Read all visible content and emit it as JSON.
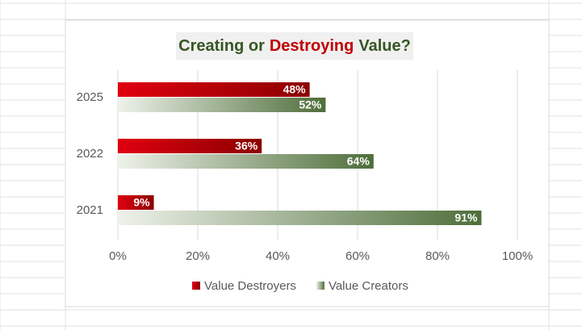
{
  "chart_data": {
    "type": "hbar",
    "title_parts": [
      "Creating or",
      "Destroying",
      "Value?"
    ],
    "title_colors": [
      "#375623",
      "#c00000",
      "#375623"
    ],
    "categories": [
      "2025",
      "2022",
      "2021"
    ],
    "series": [
      {
        "name": "Value Destroyers",
        "color": "#8b0000",
        "gradient_from": "#e00010",
        "values": [
          48,
          36,
          9
        ],
        "value_labels": [
          "48%",
          "36%",
          "9%"
        ]
      },
      {
        "name": "Value Creators",
        "color": "#4e6e3a",
        "gradient_from": "#eef2ea",
        "values": [
          52,
          64,
          91
        ],
        "value_labels": [
          "52%",
          "64%",
          "91%"
        ]
      }
    ],
    "xlim": [
      0,
      100
    ],
    "xticks": [
      {
        "value": 0,
        "label": "0%"
      },
      {
        "value": 20,
        "label": "20%"
      },
      {
        "value": 40,
        "label": "40%"
      },
      {
        "value": 60,
        "label": "60%"
      },
      {
        "value": 80,
        "label": "80%"
      },
      {
        "value": 100,
        "label": "100%"
      }
    ],
    "grid": true,
    "legend": "bottom"
  }
}
